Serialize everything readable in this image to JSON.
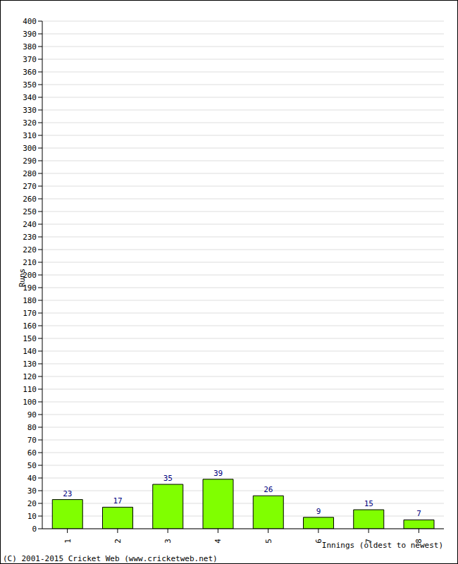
{
  "chart_data": {
    "type": "bar",
    "categories": [
      "1",
      "2",
      "3",
      "4",
      "5",
      "6",
      "7",
      "8"
    ],
    "values": [
      23,
      17,
      35,
      39,
      26,
      9,
      15,
      7
    ],
    "color": "#80ff00",
    "ylim": [
      0,
      400
    ],
    "yticks": [
      0,
      10,
      20,
      30,
      40,
      50,
      60,
      70,
      80,
      90,
      100,
      110,
      120,
      130,
      140,
      150,
      160,
      170,
      180,
      190,
      200,
      210,
      220,
      230,
      240,
      250,
      260,
      270,
      280,
      290,
      300,
      310,
      320,
      330,
      340,
      350,
      360,
      370,
      380,
      390,
      400
    ],
    "grid": true,
    "data_labels": true,
    "x_label": "Innings (oldest to newest)",
    "y_label": "Runs",
    "annotations": [
      "(C) 2001-2015 Cricket Web (www.cricketweb.net)"
    ]
  }
}
